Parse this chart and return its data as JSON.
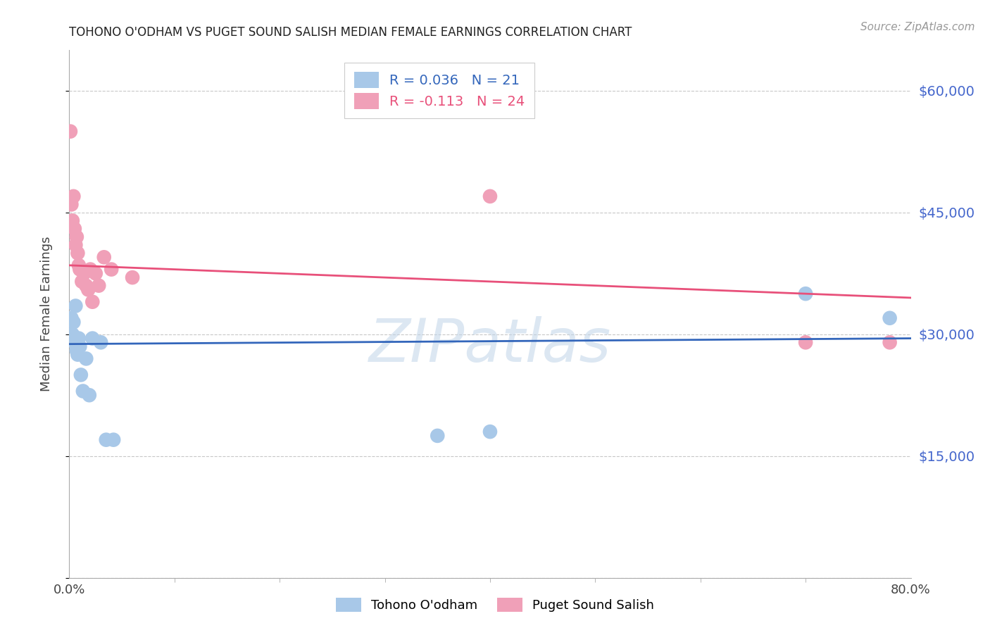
{
  "title": "TOHONO O'ODHAM VS PUGET SOUND SALISH MEDIAN FEMALE EARNINGS CORRELATION CHART",
  "source": "Source: ZipAtlas.com",
  "ylabel": "Median Female Earnings",
  "watermark": "ZIPatlas",
  "xlim": [
    0,
    0.8
  ],
  "ylim": [
    0,
    65000
  ],
  "yticks": [
    0,
    15000,
    30000,
    45000,
    60000
  ],
  "xtick_positions": [
    0.0,
    0.8
  ],
  "xtick_labels": [
    "0.0%",
    "80.0%"
  ],
  "grid_color": "#c8c8c8",
  "blue_color": "#a8c8e8",
  "pink_color": "#f0a0b8",
  "blue_line_color": "#3366bb",
  "pink_line_color": "#e8507a",
  "ytick_color": "#4466cc",
  "r_blue": 0.036,
  "n_blue": 21,
  "r_pink": -0.113,
  "n_pink": 24,
  "legend_label_blue": "Tohono O'odham",
  "legend_label_pink": "Puget Sound Salish",
  "tohono_x": [
    0.002,
    0.003,
    0.004,
    0.005,
    0.006,
    0.007,
    0.008,
    0.009,
    0.01,
    0.011,
    0.013,
    0.016,
    0.019,
    0.022,
    0.03,
    0.035,
    0.042,
    0.35,
    0.4,
    0.7,
    0.78
  ],
  "tohono_y": [
    32000,
    30000,
    31500,
    29000,
    33500,
    28000,
    27500,
    29500,
    28500,
    25000,
    23000,
    27000,
    22500,
    29500,
    29000,
    17000,
    17000,
    17500,
    18000,
    35000,
    32000
  ],
  "puget_x": [
    0.001,
    0.002,
    0.003,
    0.004,
    0.005,
    0.006,
    0.007,
    0.008,
    0.009,
    0.01,
    0.012,
    0.014,
    0.016,
    0.018,
    0.02,
    0.022,
    0.025,
    0.028,
    0.033,
    0.04,
    0.06,
    0.4,
    0.7,
    0.78
  ],
  "puget_y": [
    55000,
    46000,
    44000,
    47000,
    43000,
    41000,
    42000,
    40000,
    38500,
    38000,
    36500,
    37500,
    36000,
    35500,
    38000,
    34000,
    37500,
    36000,
    39500,
    38000,
    37000,
    47000,
    29000,
    29000
  ],
  "blue_line_x0": 0.0,
  "blue_line_x1": 0.8,
  "blue_line_y0": 28800,
  "blue_line_y1": 29500,
  "pink_line_x0": 0.0,
  "pink_line_x1": 0.8,
  "pink_line_y0": 38500,
  "pink_line_y1": 34500
}
